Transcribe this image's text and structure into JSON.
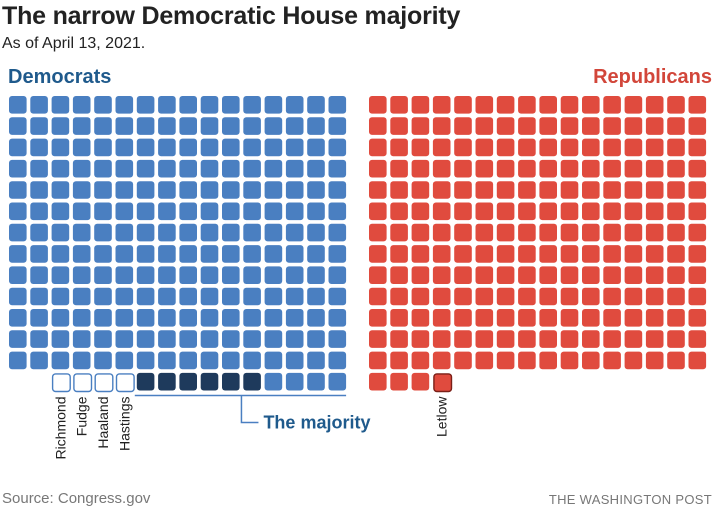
{
  "title": "The narrow Democratic House majority",
  "subtitle": "As of April 13, 2021.",
  "source": "Source: Congress.gov",
  "credit": "THE WASHINGTON POST",
  "colors": {
    "democrat": "#4a7fc1",
    "democrat_majority": "#1e3a5c",
    "democrat_label": "#1f5a8c",
    "republican": "#e04b3e",
    "republican_label": "#d2463a",
    "vacant_dem_border": "#4a7fc1",
    "vacant_rep_border": "#7a1f17",
    "bracket": "#4a7fc1"
  },
  "chart_data": {
    "type": "waffle",
    "unit": "House seats",
    "series": [
      {
        "name": "Democrats",
        "filled_seats": 218,
        "majority_highlight_seats": 6,
        "vacant": [
          "Richmond",
          "Fudge",
          "Haaland",
          "Hastings"
        ]
      },
      {
        "name": "Republicans",
        "filled_seats": 211,
        "vacant": [
          "Letlow"
        ]
      }
    ],
    "annotation": "The majority"
  }
}
